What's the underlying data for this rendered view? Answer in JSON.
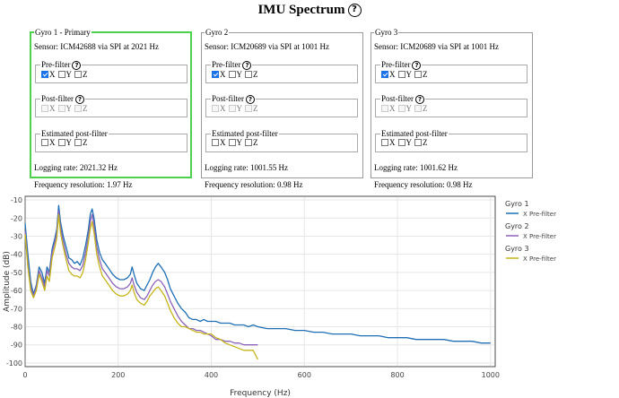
{
  "title": "IMU Spectrum",
  "help_glyph": "?",
  "gyros": [
    {
      "legend": "Gyro 1 - Primary",
      "sensor": "Sensor: ICM42688 via SPI at 2021 Hz",
      "primary": true,
      "filters": [
        {
          "label": "Pre-filter",
          "enabled": true,
          "checked": [
            true,
            false,
            false
          ]
        },
        {
          "label": "Post-filter",
          "enabled": false,
          "checked": [
            false,
            false,
            false
          ]
        },
        {
          "label": "Estimated post-filter",
          "enabled": true,
          "checked": [
            false,
            false,
            false
          ]
        }
      ],
      "logging_rate": "Logging rate: 2021.32 Hz",
      "freq_resolution": "Frequency resolution: 1.97 Hz"
    },
    {
      "legend": "Gyro 2",
      "sensor": "Sensor: ICM20689 via SPI at 1001 Hz",
      "primary": false,
      "filters": [
        {
          "label": "Pre-filter",
          "enabled": true,
          "checked": [
            true,
            false,
            false
          ]
        },
        {
          "label": "Post-filter",
          "enabled": false,
          "checked": [
            false,
            false,
            false
          ]
        },
        {
          "label": "Estimated post-filter",
          "enabled": true,
          "checked": [
            false,
            false,
            false
          ]
        }
      ],
      "logging_rate": "Logging rate: 1001.55 Hz",
      "freq_resolution": "Frequency resolution: 0.98 Hz"
    },
    {
      "legend": "Gyro 3",
      "sensor": "Sensor: ICM20689 via SPI at 1001 Hz",
      "primary": false,
      "filters": [
        {
          "label": "Pre-filter",
          "enabled": true,
          "checked": [
            true,
            false,
            false
          ]
        },
        {
          "label": "Post-filter",
          "enabled": false,
          "checked": [
            false,
            false,
            false
          ]
        },
        {
          "label": "Estimated post-filter",
          "enabled": true,
          "checked": [
            false,
            false,
            false
          ]
        }
      ],
      "logging_rate": "Logging rate: 1001.62 Hz",
      "freq_resolution": "Frequency resolution: 0.98 Hz"
    }
  ],
  "axis_labels": [
    "X",
    "Y",
    "Z"
  ],
  "chart_data": {
    "type": "line",
    "xlabel": "Frequency (Hz)",
    "ylabel": "Amplitude (dB)",
    "xlim": [
      0,
      1010
    ],
    "ylim": [
      -102,
      -8
    ],
    "xticks": [
      0,
      200,
      400,
      600,
      800,
      1000
    ],
    "yticks": [
      -10,
      -20,
      -30,
      -40,
      -50,
      -60,
      -70,
      -80,
      -90,
      -100
    ],
    "grid": true,
    "legend_position": "right",
    "legend_groups": [
      {
        "title": "Gyro 1",
        "items": [
          {
            "name": "X Pre-filter",
            "color": "#1f6fb4"
          }
        ]
      },
      {
        "title": "Gyro 2",
        "items": [
          {
            "name": "X Pre-filter",
            "color": "#8a63b8"
          }
        ]
      },
      {
        "title": "Gyro 3",
        "items": [
          {
            "name": "X Pre-filter",
            "color": "#c4b51a"
          }
        ]
      }
    ],
    "series": [
      {
        "color": "#1f6fb4",
        "points": [
          [
            0,
            -23
          ],
          [
            6,
            -40
          ],
          [
            12,
            -55
          ],
          [
            18,
            -62
          ],
          [
            24,
            -57
          ],
          [
            30,
            -47
          ],
          [
            36,
            -50
          ],
          [
            42,
            -56
          ],
          [
            47,
            -47
          ],
          [
            52,
            -50
          ],
          [
            58,
            -37
          ],
          [
            64,
            -31
          ],
          [
            68,
            -26
          ],
          [
            72,
            -13
          ],
          [
            76,
            -22
          ],
          [
            82,
            -30
          ],
          [
            88,
            -36
          ],
          [
            94,
            -42
          ],
          [
            100,
            -43
          ],
          [
            106,
            -45
          ],
          [
            112,
            -44
          ],
          [
            118,
            -46
          ],
          [
            124,
            -42
          ],
          [
            130,
            -35
          ],
          [
            136,
            -26
          ],
          [
            140,
            -18
          ],
          [
            144,
            -15
          ],
          [
            148,
            -20
          ],
          [
            154,
            -32
          ],
          [
            160,
            -39
          ],
          [
            166,
            -43
          ],
          [
            172,
            -45
          ],
          [
            180,
            -48
          ],
          [
            188,
            -51
          ],
          [
            196,
            -53
          ],
          [
            204,
            -54
          ],
          [
            212,
            -54
          ],
          [
            220,
            -53
          ],
          [
            226,
            -51
          ],
          [
            230,
            -47
          ],
          [
            234,
            -51
          ],
          [
            240,
            -56
          ],
          [
            248,
            -59
          ],
          [
            256,
            -60
          ],
          [
            262,
            -57
          ],
          [
            268,
            -54
          ],
          [
            274,
            -50
          ],
          [
            280,
            -47
          ],
          [
            286,
            -45
          ],
          [
            292,
            -47
          ],
          [
            300,
            -50
          ],
          [
            306,
            -54
          ],
          [
            312,
            -59
          ],
          [
            320,
            -63
          ],
          [
            328,
            -67
          ],
          [
            336,
            -70
          ],
          [
            344,
            -72
          ],
          [
            352,
            -75
          ],
          [
            360,
            -76
          ],
          [
            368,
            -76
          ],
          [
            376,
            -77
          ],
          [
            384,
            -76
          ],
          [
            392,
            -77
          ],
          [
            400,
            -77
          ],
          [
            410,
            -77
          ],
          [
            420,
            -78
          ],
          [
            430,
            -78
          ],
          [
            440,
            -78
          ],
          [
            450,
            -79
          ],
          [
            460,
            -79
          ],
          [
            470,
            -79
          ],
          [
            480,
            -80
          ],
          [
            490,
            -79
          ],
          [
            500,
            -80
          ],
          [
            520,
            -81
          ],
          [
            540,
            -81
          ],
          [
            560,
            -81
          ],
          [
            580,
            -82
          ],
          [
            600,
            -82
          ],
          [
            620,
            -83
          ],
          [
            640,
            -83
          ],
          [
            660,
            -84
          ],
          [
            680,
            -84
          ],
          [
            700,
            -84
          ],
          [
            720,
            -85
          ],
          [
            740,
            -85
          ],
          [
            760,
            -85
          ],
          [
            780,
            -86
          ],
          [
            800,
            -86
          ],
          [
            820,
            -86
          ],
          [
            840,
            -87
          ],
          [
            860,
            -87
          ],
          [
            880,
            -87
          ],
          [
            900,
            -87
          ],
          [
            920,
            -88
          ],
          [
            940,
            -88
          ],
          [
            960,
            -88
          ],
          [
            980,
            -89
          ],
          [
            1000,
            -89
          ]
        ]
      },
      {
        "color": "#8a63b8",
        "points": [
          [
            0,
            -27
          ],
          [
            6,
            -45
          ],
          [
            12,
            -58
          ],
          [
            18,
            -63
          ],
          [
            24,
            -58
          ],
          [
            30,
            -49
          ],
          [
            36,
            -53
          ],
          [
            42,
            -58
          ],
          [
            47,
            -49
          ],
          [
            52,
            -52
          ],
          [
            58,
            -39
          ],
          [
            64,
            -33
          ],
          [
            68,
            -28
          ],
          [
            72,
            -16
          ],
          [
            76,
            -25
          ],
          [
            82,
            -33
          ],
          [
            88,
            -40
          ],
          [
            94,
            -45
          ],
          [
            100,
            -47
          ],
          [
            106,
            -48
          ],
          [
            112,
            -48
          ],
          [
            118,
            -49
          ],
          [
            124,
            -46
          ],
          [
            130,
            -39
          ],
          [
            136,
            -30
          ],
          [
            140,
            -22
          ],
          [
            144,
            -18
          ],
          [
            148,
            -24
          ],
          [
            154,
            -36
          ],
          [
            160,
            -43
          ],
          [
            166,
            -48
          ],
          [
            172,
            -50
          ],
          [
            180,
            -53
          ],
          [
            188,
            -56
          ],
          [
            196,
            -58
          ],
          [
            204,
            -59
          ],
          [
            212,
            -59
          ],
          [
            220,
            -58
          ],
          [
            226,
            -56
          ],
          [
            230,
            -53
          ],
          [
            234,
            -57
          ],
          [
            240,
            -61
          ],
          [
            248,
            -64
          ],
          [
            256,
            -65
          ],
          [
            262,
            -63
          ],
          [
            268,
            -60
          ],
          [
            274,
            -57
          ],
          [
            280,
            -55
          ],
          [
            286,
            -54
          ],
          [
            292,
            -55
          ],
          [
            300,
            -58
          ],
          [
            306,
            -62
          ],
          [
            312,
            -66
          ],
          [
            320,
            -70
          ],
          [
            328,
            -74
          ],
          [
            336,
            -77
          ],
          [
            344,
            -79
          ],
          [
            352,
            -81
          ],
          [
            360,
            -81
          ],
          [
            368,
            -82
          ],
          [
            376,
            -82
          ],
          [
            384,
            -83
          ],
          [
            392,
            -84
          ],
          [
            400,
            -85
          ],
          [
            410,
            -87
          ],
          [
            420,
            -87
          ],
          [
            430,
            -88
          ],
          [
            440,
            -88
          ],
          [
            450,
            -89
          ],
          [
            460,
            -89
          ],
          [
            470,
            -90
          ],
          [
            480,
            -90
          ],
          [
            500,
            -90
          ]
        ]
      },
      {
        "color": "#c4b51a",
        "points": [
          [
            0,
            -29
          ],
          [
            6,
            -47
          ],
          [
            12,
            -60
          ],
          [
            18,
            -64
          ],
          [
            24,
            -60
          ],
          [
            30,
            -51
          ],
          [
            36,
            -55
          ],
          [
            42,
            -60
          ],
          [
            47,
            -52
          ],
          [
            52,
            -55
          ],
          [
            58,
            -42
          ],
          [
            64,
            -36
          ],
          [
            68,
            -31
          ],
          [
            72,
            -18
          ],
          [
            76,
            -28
          ],
          [
            82,
            -36
          ],
          [
            88,
            -43
          ],
          [
            94,
            -49
          ],
          [
            100,
            -51
          ],
          [
            106,
            -52
          ],
          [
            112,
            -52
          ],
          [
            118,
            -53
          ],
          [
            124,
            -50
          ],
          [
            130,
            -43
          ],
          [
            136,
            -33
          ],
          [
            140,
            -26
          ],
          [
            144,
            -22
          ],
          [
            148,
            -28
          ],
          [
            154,
            -40
          ],
          [
            160,
            -47
          ],
          [
            166,
            -52
          ],
          [
            172,
            -54
          ],
          [
            180,
            -57
          ],
          [
            188,
            -60
          ],
          [
            196,
            -62
          ],
          [
            204,
            -63
          ],
          [
            212,
            -63
          ],
          [
            220,
            -62
          ],
          [
            226,
            -60
          ],
          [
            230,
            -57
          ],
          [
            234,
            -61
          ],
          [
            240,
            -65
          ],
          [
            248,
            -67
          ],
          [
            256,
            -68
          ],
          [
            262,
            -66
          ],
          [
            268,
            -63
          ],
          [
            274,
            -61
          ],
          [
            280,
            -59
          ],
          [
            286,
            -58
          ],
          [
            292,
            -60
          ],
          [
            300,
            -63
          ],
          [
            306,
            -67
          ],
          [
            312,
            -71
          ],
          [
            320,
            -75
          ],
          [
            328,
            -78
          ],
          [
            336,
            -80
          ],
          [
            344,
            -80
          ],
          [
            352,
            -81
          ],
          [
            360,
            -82
          ],
          [
            368,
            -83
          ],
          [
            376,
            -83
          ],
          [
            384,
            -84
          ],
          [
            392,
            -84
          ],
          [
            400,
            -84
          ],
          [
            410,
            -86
          ],
          [
            420,
            -87
          ],
          [
            430,
            -89
          ],
          [
            440,
            -90
          ],
          [
            450,
            -91
          ],
          [
            460,
            -92
          ],
          [
            470,
            -93
          ],
          [
            480,
            -93
          ],
          [
            490,
            -93
          ],
          [
            500,
            -98
          ]
        ]
      }
    ]
  }
}
